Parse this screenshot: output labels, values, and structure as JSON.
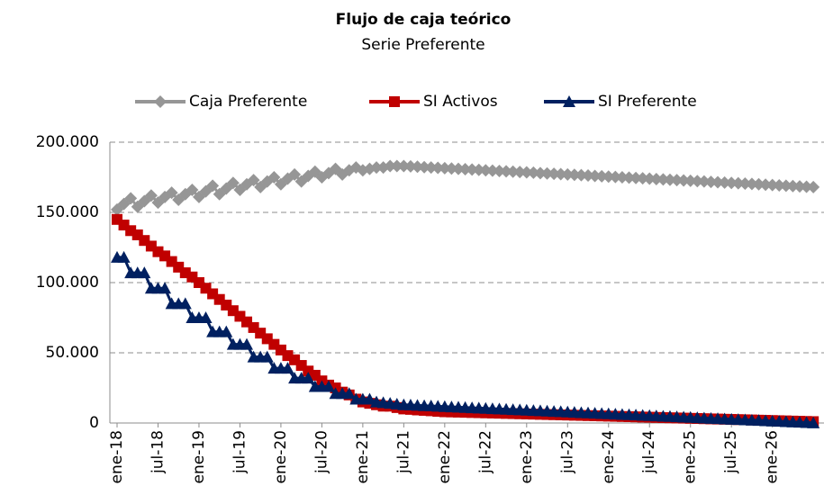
{
  "chart_data": {
    "type": "line",
    "title": "Flujo de caja teórico",
    "subtitle": "Serie Preferente",
    "categories": [
      "ene-18",
      null,
      null,
      null,
      null,
      null,
      "jul-18",
      null,
      null,
      null,
      null,
      null,
      "ene-19",
      null,
      null,
      null,
      null,
      null,
      "jul-19",
      null,
      null,
      null,
      null,
      null,
      "ene-20",
      null,
      null,
      null,
      null,
      null,
      "jul-20",
      null,
      null,
      null,
      null,
      null,
      "ene-21",
      null,
      null,
      null,
      null,
      null,
      "jul-21",
      null,
      null,
      null,
      null,
      null,
      "ene-22",
      null,
      null,
      null,
      null,
      null,
      "jul-22",
      null,
      null,
      null,
      null,
      null,
      "ene-23",
      null,
      null,
      null,
      null,
      null,
      "jul-23",
      null,
      null,
      null,
      null,
      null,
      "ene-24",
      null,
      null,
      null,
      null,
      null,
      "jul-24",
      null,
      null,
      null,
      null,
      null,
      "ene-25",
      null,
      null,
      null,
      null,
      null,
      "jul-25",
      null,
      null,
      null,
      null,
      null,
      "ene-26",
      null,
      null,
      null,
      null,
      null,
      null
    ],
    "series": [
      {
        "name": "Caja Preferente",
        "color": "#969696",
        "marker": "diamond",
        "values": [
          152000,
          156000,
          160000,
          154000,
          158000,
          162000,
          157000,
          161000,
          164000,
          159000,
          163000,
          166000,
          161000,
          165000,
          169000,
          163000,
          167000,
          171000,
          166000,
          170000,
          173000,
          168000,
          172000,
          175000,
          170000,
          174000,
          177000,
          172000,
          176000,
          179000,
          175000,
          178000,
          181000,
          177000,
          180000,
          182000,
          180000,
          181000,
          182000,
          182000,
          183000,
          183000,
          183000,
          182750,
          182500,
          182250,
          182000,
          181750,
          181500,
          181250,
          181000,
          180750,
          180500,
          180250,
          180000,
          179750,
          179500,
          179250,
          179000,
          178750,
          178500,
          178250,
          178000,
          177750,
          177500,
          177250,
          177000,
          176750,
          176500,
          176250,
          176000,
          175750,
          175500,
          175250,
          175000,
          174750,
          174500,
          174250,
          174000,
          173750,
          173500,
          173250,
          173000,
          172750,
          172500,
          172250,
          172000,
          171750,
          171500,
          171250,
          171000,
          170750,
          170500,
          170250,
          170000,
          169750,
          169500,
          169250,
          169000,
          168750,
          168500,
          168250,
          168000
        ]
      },
      {
        "name": "SI Activos",
        "color": "#c00000",
        "marker": "square",
        "values": [
          145000,
          141000,
          137000,
          134000,
          130000,
          126000,
          122000,
          119000,
          115000,
          111000,
          107000,
          104000,
          100000,
          96000,
          92000,
          88000,
          84000,
          80000,
          76000,
          72000,
          68000,
          64000,
          60000,
          56000,
          52000,
          48000,
          45000,
          41000,
          37000,
          34000,
          30000,
          27000,
          25000,
          22000,
          20000,
          17000,
          15000,
          14000,
          13000,
          12000,
          12000,
          11000,
          10000,
          9700,
          9300,
          9000,
          8700,
          8300,
          8000,
          7870,
          7740,
          7610,
          7480,
          7350,
          7220,
          7090,
          6960,
          6830,
          6700,
          6570,
          6440,
          6310,
          6180,
          6050,
          5920,
          5790,
          5660,
          5530,
          5400,
          5270,
          5140,
          5010,
          4880,
          4750,
          4620,
          4490,
          4360,
          4230,
          4100,
          3970,
          3840,
          3710,
          3580,
          3450,
          3320,
          3190,
          3060,
          2930,
          2800,
          2670,
          2540,
          2410,
          2280,
          2150,
          2020,
          1890,
          1760,
          1630,
          1500,
          1370,
          1240,
          1110,
          980
        ]
      },
      {
        "name": "SI Preferente",
        "color": "#002060",
        "marker": "triangle",
        "values": [
          118000,
          118000,
          107000,
          107000,
          107000,
          96000,
          96000,
          96000,
          85000,
          85000,
          85000,
          75000,
          75000,
          75000,
          65000,
          65000,
          65000,
          56000,
          56000,
          56000,
          47000,
          47000,
          47000,
          39000,
          39000,
          39000,
          32000,
          32000,
          32000,
          26000,
          26000,
          26000,
          21000,
          21000,
          21000,
          17000,
          17000,
          17000,
          15000,
          14500,
          14000,
          13500,
          13000,
          12785,
          12570,
          12355,
          12140,
          11925,
          11710,
          11495,
          11280,
          11065,
          10850,
          10635,
          10420,
          10205,
          9990,
          9775,
          9560,
          9345,
          9130,
          8915,
          8700,
          8485,
          8270,
          8055,
          7840,
          7625,
          7410,
          7195,
          6980,
          6765,
          6550,
          6335,
          6120,
          5905,
          5690,
          5475,
          5260,
          5045,
          4830,
          4615,
          4400,
          4185,
          3970,
          3755,
          3540,
          3325,
          3110,
          2895,
          2680,
          2465,
          2250,
          2035,
          1820,
          1605,
          1390,
          1175,
          960,
          745,
          530,
          315,
          100
        ]
      }
    ],
    "ylim": [
      0,
      200000
    ],
    "yticks": [
      0,
      {
        "value": 50000,
        "label": "50.000"
      },
      {
        "value": 100000,
        "label": "100.000"
      },
      {
        "value": 150000,
        "label": "150.000"
      },
      {
        "value": 200000,
        "label": "200.000"
      }
    ],
    "grid": true,
    "legend": "top"
  }
}
